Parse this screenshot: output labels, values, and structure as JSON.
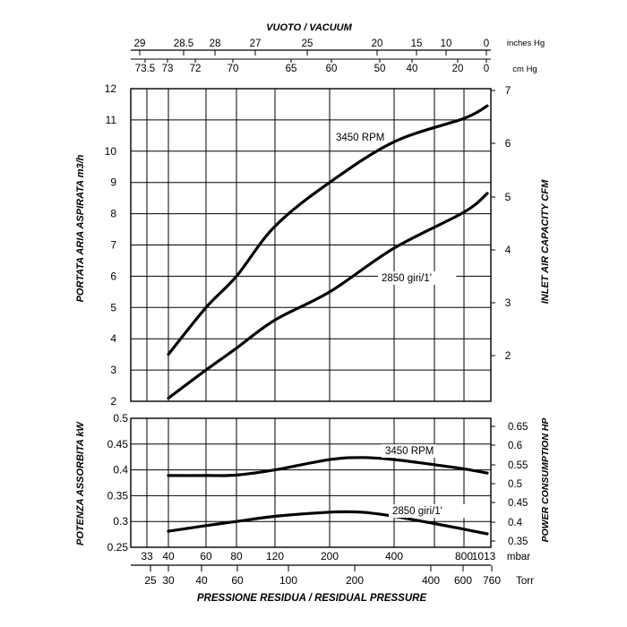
{
  "chart_data": [
    {
      "type": "line",
      "title": "",
      "xlabel": "PRESSIONE RESIDUA / RESIDUAL PRESSURE",
      "top_title": "VUOTO / VACUUM",
      "ylabel_left": "PORTATA ARIA ASPIRATA m3/h",
      "ylabel_right": "INLET AIR CAPACITY CFM",
      "ylim_left": [
        2,
        12
      ],
      "ylim_right_ticks": [
        "2",
        "3",
        "4",
        "5",
        "6",
        "7"
      ],
      "x_axis_mbar_ticks": [
        "33",
        "40",
        "60",
        "80",
        "120",
        "200",
        "400",
        "800",
        "1013"
      ],
      "x_axis_mbar_unit": "mbar",
      "x_axis_torr_ticks": [
        "25",
        "30",
        "40",
        "60",
        "100",
        "200",
        "400",
        "600",
        "760"
      ],
      "x_axis_torr_unit": "Torr",
      "top_inches_ticks": [
        "29",
        "28.5",
        "28",
        "27",
        "25",
        "20",
        "15",
        "10",
        "0"
      ],
      "top_inches_unit": "inches Hg",
      "top_cm_ticks": [
        "73.5",
        "73",
        "72",
        "70",
        "65",
        "60",
        "50",
        "40",
        "20",
        "0"
      ],
      "top_cm_unit": "cm Hg",
      "x_mbar": [
        40,
        60,
        80,
        120,
        200,
        400,
        800,
        1013
      ],
      "series": [
        {
          "name": "3450 RPM",
          "values": [
            3.5,
            5.0,
            6.0,
            7.6,
            9.0,
            10.3,
            11.05,
            11.45
          ]
        },
        {
          "name": "2850 giri/1'",
          "values": [
            2.1,
            3.0,
            3.7,
            4.6,
            5.5,
            6.9,
            8.05,
            8.65
          ]
        }
      ]
    },
    {
      "type": "line",
      "title": "",
      "ylabel_left": "POTENZA ASSORBITA kW",
      "ylabel_right": "POWER CONSUMPTION HP",
      "ylim_left": [
        0.25,
        0.5
      ],
      "y_left_ticks": [
        "0.25",
        "0.3",
        "0.35",
        "0.4",
        "0.45",
        "0.5"
      ],
      "y_right_ticks": [
        "0.35",
        "0.4",
        "0.45",
        "0.5",
        "0.55",
        "0.6",
        "0.65"
      ],
      "x_mbar": [
        40,
        60,
        80,
        120,
        200,
        300,
        400,
        600,
        800,
        1013
      ],
      "series": [
        {
          "name": "3450 RPM",
          "values": [
            0.389,
            0.389,
            0.39,
            0.4,
            0.42,
            0.424,
            0.42,
            0.41,
            0.402,
            0.394
          ]
        },
        {
          "name": "2850 giri/1'",
          "values": [
            0.281,
            0.292,
            0.3,
            0.31,
            0.318,
            0.318,
            0.31,
            0.296,
            0.285,
            0.276
          ]
        }
      ]
    }
  ]
}
